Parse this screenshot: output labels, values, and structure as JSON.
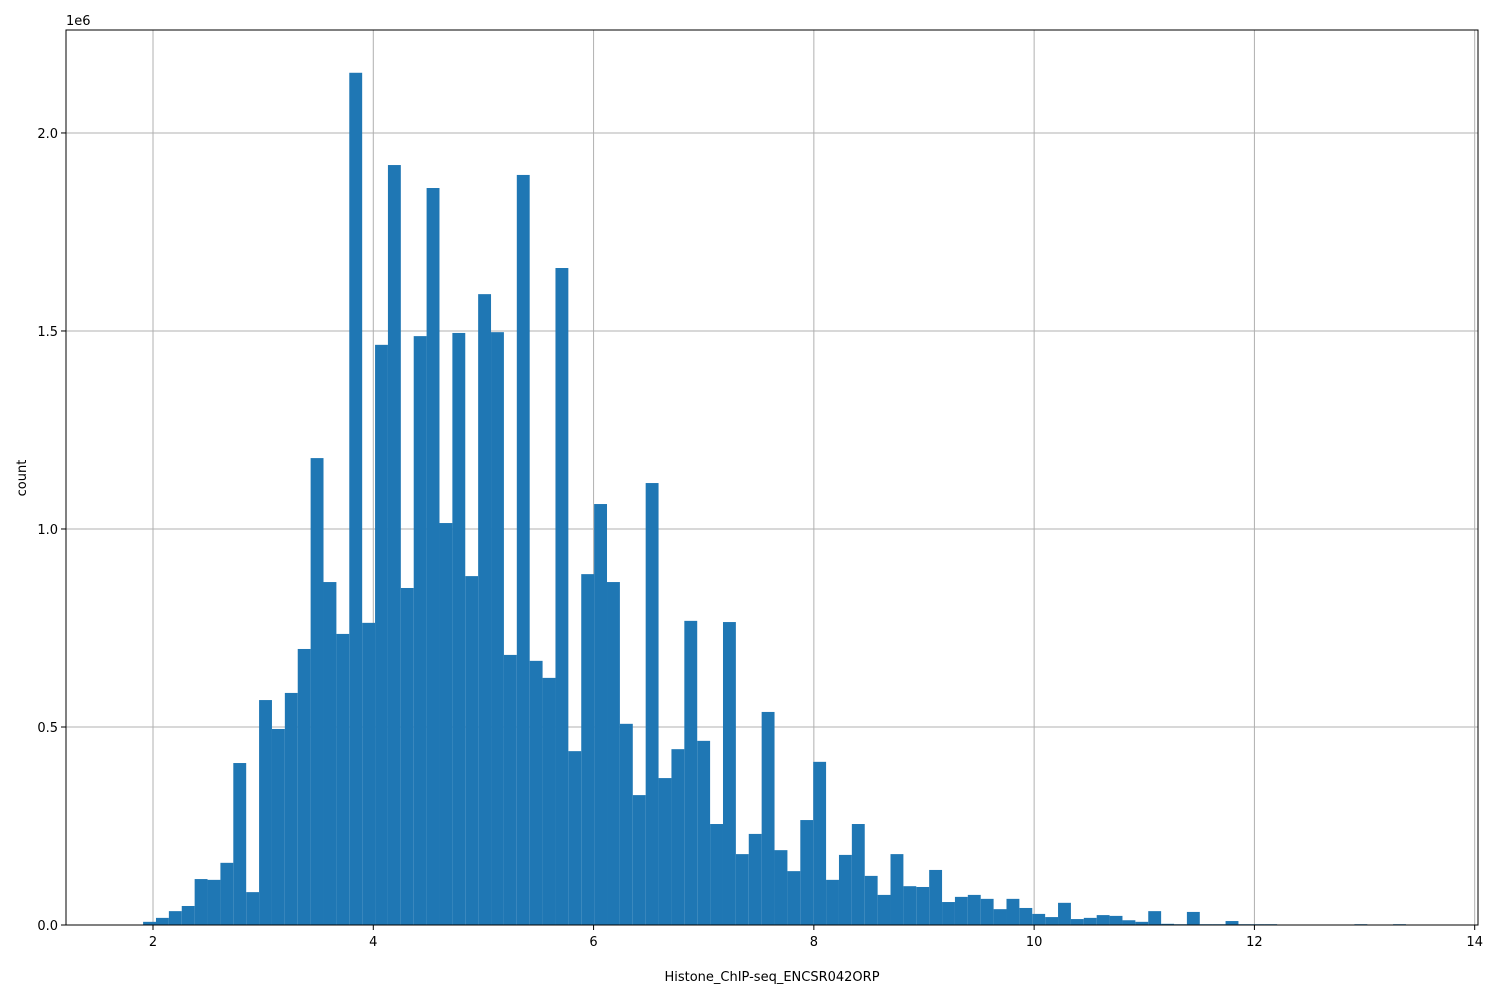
{
  "chart_data": {
    "type": "histogram",
    "xlabel": "Histone_ChIP-seq_ENCSR042ORP",
    "ylabel": "count",
    "y_offset_label": "1e6",
    "color": "#1f77b4",
    "grid": true,
    "xlim": [
      1.21,
      14.03
    ],
    "ylim": [
      0,
      2260000
    ],
    "xticks": [
      2,
      4,
      6,
      8,
      10,
      12,
      14
    ],
    "yticks": [
      {
        "value": 0,
        "label": "0.0"
      },
      {
        "value": 500000,
        "label": "0.5"
      },
      {
        "value": 1000000,
        "label": "1.0"
      },
      {
        "value": 1500000,
        "label": "1.5"
      },
      {
        "value": 2000000,
        "label": "2.0"
      }
    ],
    "bins": [
      1.91,
      2.027,
      2.144,
      2.261,
      2.378,
      2.495,
      2.612,
      2.729,
      2.846,
      2.963,
      3.08,
      3.197,
      3.314,
      3.431,
      3.548,
      3.665,
      3.782,
      3.899,
      4.016,
      4.133,
      4.25,
      4.367,
      4.484,
      4.601,
      4.718,
      4.835,
      4.952,
      5.069,
      5.186,
      5.303,
      5.42,
      5.537,
      5.654,
      5.771,
      5.888,
      6.005,
      6.122,
      6.239,
      6.356,
      6.473,
      6.59,
      6.707,
      6.824,
      6.941,
      7.058,
      7.175,
      7.292,
      7.409,
      7.526,
      7.643,
      7.76,
      7.877,
      7.994,
      8.111,
      8.228,
      8.345,
      8.462,
      8.579,
      8.696,
      8.813,
      8.93,
      9.047,
      9.164,
      9.281,
      9.398,
      9.515,
      9.632,
      9.749,
      9.866,
      9.983,
      10.1,
      10.217,
      10.334,
      10.451,
      10.568,
      10.685,
      10.802,
      10.919,
      11.036,
      11.153,
      11.27,
      11.387,
      11.504,
      11.621,
      11.738,
      11.855,
      11.972,
      12.089,
      12.206,
      12.323,
      12.44,
      12.557,
      12.674,
      12.791,
      12.908,
      13.025,
      13.142,
      13.259,
      13.376,
      13.493,
      13.61
    ],
    "values": [
      8000,
      18000,
      35000,
      48000,
      116000,
      114000,
      157000,
      409000,
      83000,
      568000,
      495000,
      586000,
      697000,
      1179000,
      866000,
      735000,
      2152000,
      763000,
      1465000,
      1919000,
      851000,
      1487000,
      1861000,
      1015000,
      1495000,
      881000,
      1593000,
      1497000,
      682000,
      1894000,
      667000,
      624000,
      1659000,
      439000,
      886000,
      1063000,
      866000,
      508000,
      328000,
      1116000,
      371000,
      444000,
      768000,
      465000,
      255000,
      765000,
      179000,
      230000,
      538000,
      189000,
      136000,
      265000,
      412000,
      114000,
      177000,
      255000,
      124000,
      76000,
      179000,
      98000,
      96000,
      139000,
      58000,
      71000,
      76000,
      66000,
      40000,
      66000,
      43000,
      28000,
      20000,
      56000,
      15000,
      18000,
      25000,
      23000,
      12000,
      8000,
      35000,
      3000,
      2000,
      33000,
      2000,
      2000,
      10000,
      2000,
      2000,
      2000,
      0,
      0,
      0,
      0,
      0,
      0,
      2000,
      0,
      0,
      2000,
      0,
      0
    ]
  }
}
